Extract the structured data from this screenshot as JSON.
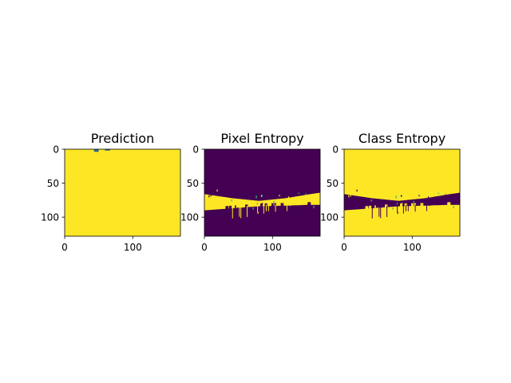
{
  "chart_data": [
    {
      "type": "heatmap",
      "title": "Prediction",
      "x_range": [
        0,
        170
      ],
      "y_range": [
        0,
        128
      ],
      "y_inverted": true,
      "xticks": [
        0,
        100
      ],
      "yticks": [
        0,
        50,
        100
      ],
      "colormap": "viridis",
      "background_color": "#fde725",
      "low_color": "#440154",
      "regions": [
        {
          "color": "#31688e",
          "x": [
            43,
            50
          ],
          "y": [
            0,
            4
          ]
        },
        {
          "color": "#31688e",
          "x": [
            59,
            67
          ],
          "y": [
            0,
            2
          ]
        }
      ]
    },
    {
      "type": "heatmap",
      "title": "Pixel Entropy",
      "x_range": [
        0,
        170
      ],
      "y_range": [
        0,
        128
      ],
      "y_inverted": true,
      "xticks": [
        0,
        100
      ],
      "yticks": [
        0,
        50,
        100
      ],
      "colormap": "viridis",
      "background_color": "#440154",
      "band_color": "#fde725",
      "band": {
        "top": [
          [
            0,
            66
          ],
          [
            40,
            72
          ],
          [
            80,
            76
          ],
          [
            120,
            72
          ],
          [
            150,
            67
          ],
          [
            170,
            64
          ]
        ],
        "bottom": [
          [
            0,
            90
          ],
          [
            40,
            87
          ],
          [
            80,
            84
          ],
          [
            120,
            83
          ],
          [
            150,
            82
          ],
          [
            170,
            82
          ]
        ]
      },
      "speckle_color": "#35b779"
    },
    {
      "type": "heatmap",
      "title": "Class Entropy",
      "x_range": [
        0,
        170
      ],
      "y_range": [
        0,
        128
      ],
      "y_inverted": true,
      "xticks": [
        0,
        100
      ],
      "yticks": [
        0,
        50,
        100
      ],
      "colormap": "viridis",
      "background_color": "#fde725",
      "band_color": "#440154",
      "band": {
        "top": [
          [
            0,
            66
          ],
          [
            40,
            72
          ],
          [
            80,
            76
          ],
          [
            120,
            72
          ],
          [
            150,
            67
          ],
          [
            170,
            64
          ]
        ],
        "bottom": [
          [
            0,
            90
          ],
          [
            40,
            87
          ],
          [
            80,
            84
          ],
          [
            120,
            83
          ],
          [
            150,
            82
          ],
          [
            170,
            82
          ]
        ]
      },
      "speckle_color": "#35b779"
    }
  ]
}
